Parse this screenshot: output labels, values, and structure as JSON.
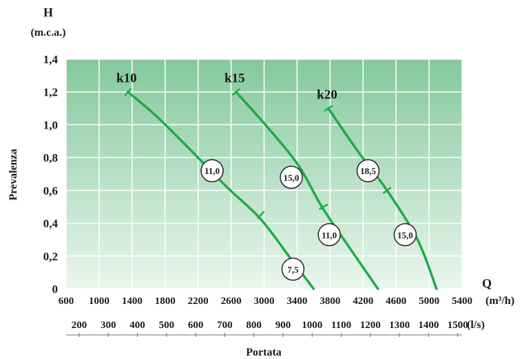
{
  "chart_data": {
    "type": "line",
    "y_axis": {
      "title": "Prevalenza",
      "symbol": "H",
      "unit": "(m.c.a.)",
      "min": 0,
      "max": 1.4,
      "ticks": [
        {
          "v": 0,
          "label": "0"
        },
        {
          "v": 0.2,
          "label": "0,2"
        },
        {
          "v": 0.4,
          "label": "0,4"
        },
        {
          "v": 0.6,
          "label": "0,6"
        },
        {
          "v": 0.8,
          "label": "0,8"
        },
        {
          "v": 1.0,
          "label": "1,0"
        },
        {
          "v": 1.2,
          "label": "1,2"
        },
        {
          "v": 1.4,
          "label": "1,4"
        }
      ]
    },
    "x_axis": {
      "symbol": "Q",
      "unit": "(m³/h)",
      "min": 600,
      "max": 5400,
      "ticks": [
        600,
        1000,
        1400,
        1800,
        2200,
        2600,
        3000,
        3400,
        3800,
        4200,
        4600,
        5000,
        5400
      ]
    },
    "x_axis_secondary": {
      "unit": "(l/s)",
      "ticks": [
        200,
        300,
        400,
        500,
        600,
        700,
        800,
        900,
        1000,
        1100,
        1200,
        1300,
        1400,
        1500
      ]
    },
    "x_title": "Portata",
    "grid": true,
    "series": [
      {
        "name": "k10",
        "points": [
          [
            1350,
            1.2
          ],
          [
            1700,
            1.05
          ],
          [
            2100,
            0.85
          ],
          [
            2550,
            0.62
          ],
          [
            2950,
            0.43
          ],
          [
            3300,
            0.2
          ],
          [
            3600,
            0.0
          ]
        ],
        "ticks": [
          {
            "x": 1350,
            "y": 1.2
          },
          {
            "x": 2960,
            "y": 0.45
          }
        ],
        "labels": [
          {
            "text": "11,0",
            "x": 2370,
            "y": 0.72
          },
          {
            "text": "7,5",
            "x": 3350,
            "y": 0.12
          }
        ]
      },
      {
        "name": "k15",
        "points": [
          [
            2660,
            1.2
          ],
          [
            3050,
            0.98
          ],
          [
            3420,
            0.75
          ],
          [
            3700,
            0.5
          ],
          [
            4050,
            0.24
          ],
          [
            4380,
            0.0
          ]
        ],
        "ticks": [
          {
            "x": 2660,
            "y": 1.2
          },
          {
            "x": 3720,
            "y": 0.5
          }
        ],
        "labels": [
          {
            "text": "15,0",
            "x": 3330,
            "y": 0.68
          },
          {
            "text": "11,0",
            "x": 3790,
            "y": 0.33
          }
        ]
      },
      {
        "name": "k20",
        "points": [
          [
            3780,
            1.1
          ],
          [
            4120,
            0.85
          ],
          [
            4490,
            0.6
          ],
          [
            4860,
            0.3
          ],
          [
            5090,
            0.0
          ]
        ],
        "ticks": [
          {
            "x": 3780,
            "y": 1.1
          },
          {
            "x": 4490,
            "y": 0.6
          }
        ],
        "labels": [
          {
            "text": "18,5",
            "x": 4260,
            "y": 0.72
          },
          {
            "text": "15,0",
            "x": 4710,
            "y": 0.33
          }
        ]
      }
    ],
    "colors": {
      "curve": "#1faa4a",
      "background_top": "#84c89c",
      "background_bottom": "#eaf6ee",
      "grid": "#ffffff"
    }
  }
}
